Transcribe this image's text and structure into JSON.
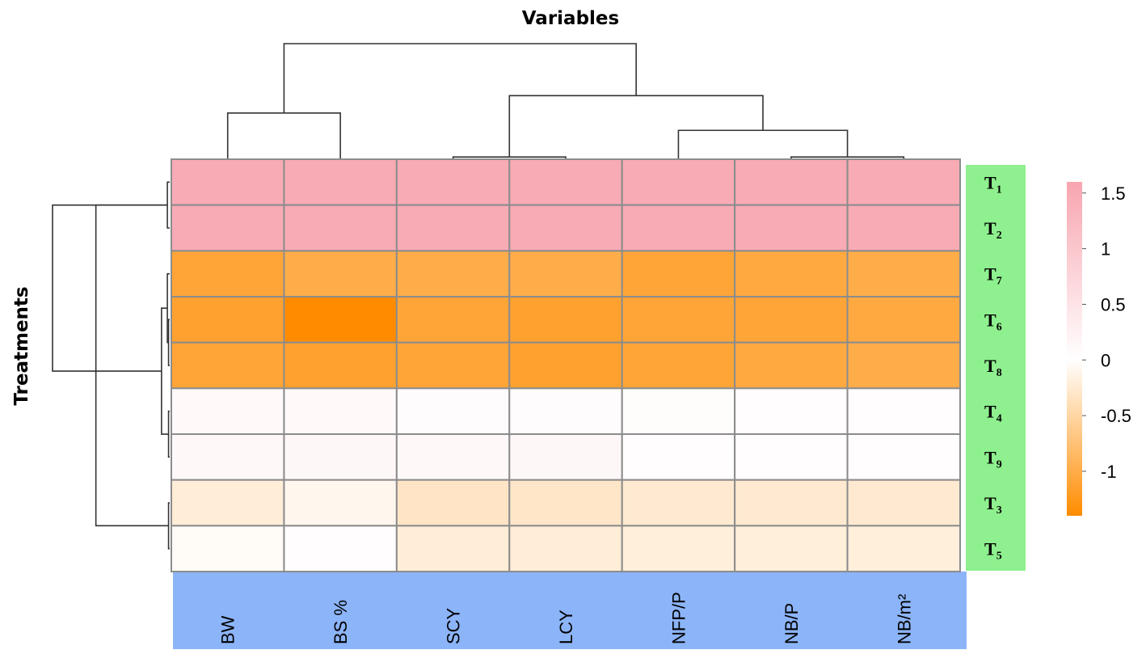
{
  "chart_data": {
    "type": "heatmap",
    "title": "Variables",
    "ylabel": "Treatments",
    "columns": [
      "BW",
      "BS %",
      "SCY",
      "LCY",
      "NFP/P",
      "NB/P",
      "NB/m²"
    ],
    "rows": [
      {
        "name": "T",
        "sub": "1",
        "values": [
          1.5,
          1.5,
          1.5,
          1.5,
          1.5,
          1.5,
          1.5
        ]
      },
      {
        "name": "T",
        "sub": "2",
        "values": [
          1.5,
          1.5,
          1.5,
          1.5,
          1.5,
          1.5,
          1.5
        ]
      },
      {
        "name": "T",
        "sub": "7",
        "values": [
          -1.1,
          -1.0,
          -1.0,
          -1.0,
          -1.1,
          -1.05,
          -1.0
        ]
      },
      {
        "name": "T",
        "sub": "6",
        "values": [
          -1.15,
          -1.4,
          -1.1,
          -1.15,
          -1.1,
          -1.1,
          -1.05
        ]
      },
      {
        "name": "T",
        "sub": "8",
        "values": [
          -1.1,
          -1.15,
          -1.1,
          -1.15,
          -1.1,
          -1.05,
          -1.0
        ]
      },
      {
        "name": "T",
        "sub": "4",
        "values": [
          0.1,
          0.1,
          0.05,
          0.05,
          -0.02,
          0.03,
          0.03
        ]
      },
      {
        "name": "T",
        "sub": "9",
        "values": [
          0.12,
          0.14,
          0.12,
          0.14,
          0.04,
          0.04,
          0.03
        ]
      },
      {
        "name": "T",
        "sub": "3",
        "values": [
          -0.22,
          -0.1,
          -0.32,
          -0.3,
          -0.25,
          -0.25,
          -0.25
        ]
      },
      {
        "name": "T",
        "sub": "5",
        "values": [
          -0.05,
          0.03,
          -0.22,
          -0.22,
          -0.2,
          -0.2,
          -0.2
        ]
      }
    ],
    "color_scale": {
      "min": -1.4,
      "max": 1.6,
      "mid": 0,
      "low_color": "#ff8c00",
      "mid_color": "#ffffff",
      "high_color": "#f8a5b0",
      "ticks": [
        1.5,
        1,
        0.5,
        0,
        -0.5,
        -1
      ],
      "tick_labels": [
        "1.5",
        "1",
        "0.5",
        "0",
        "-0.5",
        "-1"
      ]
    },
    "column_dendrogram": [
      {
        "left": 0,
        "right": 1,
        "height": 0.4
      },
      {
        "left": 2,
        "right": 3,
        "height": 0.02
      },
      {
        "left": 5,
        "right": 6,
        "height": 0.02
      },
      {
        "left": 4,
        "right": 9,
        "height": 0.25
      },
      {
        "left": 8,
        "right": 10,
        "height": 0.55
      },
      {
        "left": 7,
        "right": 11,
        "height": 1.0
      }
    ],
    "row_dendrogram": [
      {
        "left": 0,
        "right": 1,
        "height": 0.02
      },
      {
        "left": 3,
        "right": 4,
        "height": 0.01
      },
      {
        "left": 2,
        "right": 10,
        "height": 0.02
      },
      {
        "left": 5,
        "right": 6,
        "height": 0.01
      },
      {
        "left": 7,
        "right": 8,
        "height": 0.01
      },
      {
        "left": 11,
        "right": 12,
        "height": 0.07
      },
      {
        "left": 9,
        "right": 13,
        "height": 0.63
      },
      {
        "left": 9,
        "right": 14,
        "height": 1.0
      }
    ],
    "row_label_bg": "#8ef08e",
    "col_label_bg": "#8cb4f8",
    "grid_color": "#8c8c8c"
  }
}
